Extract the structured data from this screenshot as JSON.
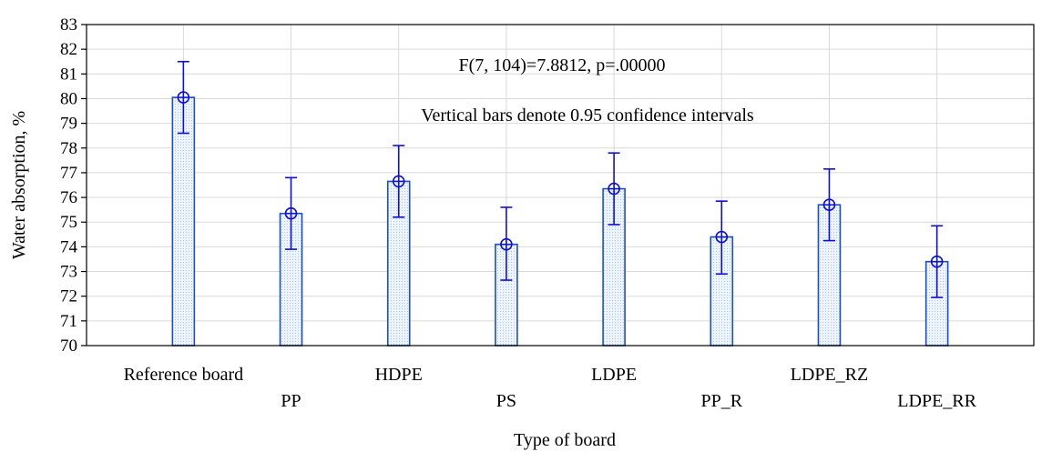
{
  "chart_data": {
    "type": "bar",
    "xlabel": "Type of board",
    "ylabel": "Water absorption, %",
    "ylim": [
      70,
      83
    ],
    "yticks": [
      70,
      71,
      72,
      73,
      74,
      75,
      76,
      77,
      78,
      79,
      80,
      81,
      82,
      83
    ],
    "grid": true,
    "categories": [
      "Reference board",
      "PP",
      "HDPE",
      "PS",
      "LDPE",
      "PP_R",
      "LDPE_RZ",
      "LDPE_RR"
    ],
    "values": [
      80.05,
      75.35,
      76.65,
      74.1,
      76.35,
      74.4,
      75.7,
      73.4
    ],
    "ci_lower": [
      78.6,
      73.9,
      75.2,
      72.65,
      74.9,
      72.9,
      74.25,
      71.95
    ],
    "ci_upper": [
      81.5,
      76.8,
      78.1,
      75.6,
      77.8,
      75.85,
      77.15,
      74.85
    ],
    "annotations": [
      "F(7, 104)=7.8812, p=.00000",
      "Vertical bars denote 0.95 confidence intervals"
    ],
    "colors": {
      "bar_fill": "#e3eef9",
      "bar_stroke": "#1f4fbf",
      "error_bar": "#1010c8",
      "grid": "#d9d9d9"
    }
  }
}
